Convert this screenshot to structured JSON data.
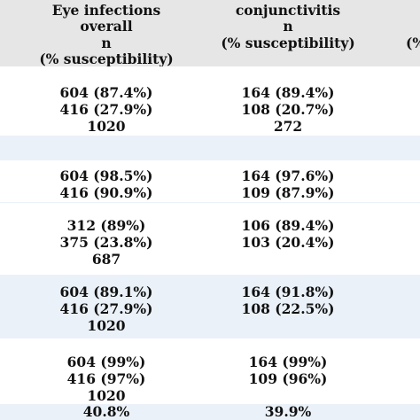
{
  "colors": {
    "header_bg": "#e6e6e6",
    "row_white": "#ffffff",
    "row_blue": "#eaf1f8"
  },
  "header": {
    "col1": [
      "Eye infections",
      "overall",
      "n",
      "(% susceptibility)"
    ],
    "col2": [
      "conjunctivitis",
      "n",
      "(% susceptibility)"
    ],
    "col3": "(%"
  },
  "rows": [
    {
      "col1": [
        "604 (87.4%)",
        "416 (27.9%)",
        "1020"
      ],
      "col2": [
        "164 (89.4%)",
        "108 (20.7%)",
        "272"
      ]
    },
    {
      "col1": [],
      "col2": []
    },
    {
      "col1": [
        "604 (98.5%)",
        "416 (90.9%)"
      ],
      "col2": [
        "164 (97.6%)",
        "109 (87.9%)"
      ]
    },
    {
      "col1": [
        "312 (89%)",
        "375 (23.8%)",
        "687"
      ],
      "col2": [
        "106 (89.4%)",
        "103 (20.4%)"
      ]
    },
    {
      "col1": [
        "604 (89.1%)",
        "416 (27.9%)",
        "1020"
      ],
      "col2": [
        "164 (91.8%)",
        "108 (22.5%)"
      ]
    },
    {
      "col1": [
        "604 (99%)",
        "416 (97%)",
        "1020"
      ],
      "col2": [
        "164 (99%)",
        "109 (96%)"
      ]
    },
    {
      "col1": [
        "40.8%"
      ],
      "col2": [
        "39.9%"
      ]
    }
  ]
}
